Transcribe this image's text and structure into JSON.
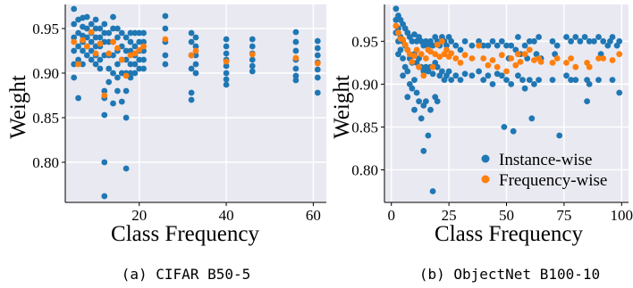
{
  "colors": {
    "panel_bg": "#e9e9f1",
    "grid": "#ffffff",
    "instance": "#1f77b4",
    "frequency": "#ff7f0e",
    "text": "#000000"
  },
  "chart_data": [
    {
      "type": "scatter",
      "caption": "(a) CIFAR B50-5",
      "xlabel": "Class Frequency",
      "ylabel": "Weight",
      "xlim": [
        3,
        63
      ],
      "ylim": [
        0.755,
        0.977
      ],
      "xticks": [
        20,
        40,
        60
      ],
      "yticks": [
        0.8,
        0.85,
        0.9,
        0.95
      ],
      "ytick_labels": [
        "0.80",
        "0.85",
        "0.90",
        "0.95"
      ],
      "xtick_labels": [
        "20",
        "40",
        "60"
      ],
      "grid": true,
      "legend": null,
      "series": [
        {
          "name": "Instance-wise",
          "x": [
            5,
            5,
            5,
            5,
            5,
            5,
            6,
            6,
            6,
            6,
            6,
            7,
            7,
            7,
            7,
            7,
            7,
            8,
            8,
            8,
            8,
            8,
            9,
            9,
            9,
            9,
            9,
            10,
            10,
            10,
            10,
            10,
            10,
            11,
            11,
            11,
            11,
            11,
            12,
            12,
            12,
            12,
            12,
            12,
            12,
            12,
            12,
            13,
            13,
            13,
            13,
            13,
            14,
            14,
            14,
            14,
            14,
            14,
            15,
            15,
            15,
            15,
            15,
            15,
            16,
            16,
            16,
            16,
            16,
            17,
            17,
            17,
            17,
            17,
            17,
            17,
            18,
            18,
            18,
            18,
            18,
            18,
            19,
            19,
            19,
            19,
            19,
            20,
            20,
            20,
            20,
            20,
            21,
            21,
            21,
            21,
            21,
            26,
            26,
            26,
            26,
            26,
            32,
            32,
            32,
            32,
            32,
            32,
            33,
            33,
            33,
            33,
            33,
            40,
            40,
            40,
            40,
            40,
            40,
            40,
            40,
            46,
            46,
            46,
            46,
            46,
            46,
            56,
            56,
            56,
            56,
            56,
            56,
            56,
            61,
            61,
            61,
            61,
            61,
            61,
            61
          ],
          "y": [
            0.972,
            0.955,
            0.94,
            0.925,
            0.91,
            0.895,
            0.96,
            0.945,
            0.93,
            0.915,
            0.872,
            0.962,
            0.952,
            0.942,
            0.935,
            0.925,
            0.91,
            0.963,
            0.95,
            0.94,
            0.93,
            0.92,
            0.955,
            0.945,
            0.935,
            0.925,
            0.915,
            0.96,
            0.95,
            0.94,
            0.93,
            0.92,
            0.91,
            0.95,
            0.94,
            0.93,
            0.915,
            0.905,
            0.955,
            0.945,
            0.935,
            0.92,
            0.88,
            0.872,
            0.853,
            0.8,
            0.762,
            0.945,
            0.935,
            0.92,
            0.905,
            0.89,
            0.963,
            0.95,
            0.935,
            0.92,
            0.9,
            0.866,
            0.95,
            0.94,
            0.925,
            0.91,
            0.895,
            0.88,
            0.945,
            0.93,
            0.915,
            0.9,
            0.868,
            0.94,
            0.925,
            0.915,
            0.9,
            0.88,
            0.85,
            0.793,
            0.945,
            0.935,
            0.925,
            0.91,
            0.9,
            0.895,
            0.945,
            0.93,
            0.92,
            0.91,
            0.9,
            0.945,
            0.935,
            0.925,
            0.915,
            0.905,
            0.945,
            0.935,
            0.925,
            0.915,
            0.905,
            0.964,
            0.95,
            0.935,
            0.92,
            0.91,
            0.945,
            0.935,
            0.92,
            0.905,
            0.878,
            0.87,
            0.94,
            0.93,
            0.92,
            0.91,
            0.9,
            0.938,
            0.93,
            0.922,
            0.915,
            0.908,
            0.9,
            0.893,
            0.887,
            0.938,
            0.93,
            0.922,
            0.915,
            0.908,
            0.902,
            0.946,
            0.935,
            0.925,
            0.915,
            0.905,
            0.897,
            0.892,
            0.936,
            0.928,
            0.92,
            0.912,
            0.904,
            0.895,
            0.878
          ]
        },
        {
          "name": "Frequency-wise",
          "x": [
            5,
            6,
            7,
            8,
            9,
            10,
            11,
            12,
            13,
            14,
            15,
            16,
            17,
            18,
            19,
            20,
            21,
            26,
            32,
            33,
            40,
            46,
            56,
            61
          ],
          "y": [
            0.935,
            0.91,
            0.937,
            0.93,
            0.946,
            0.922,
            0.933,
            0.875,
            0.922,
            0.935,
            0.928,
            0.915,
            0.897,
            0.92,
            0.922,
            0.926,
            0.93,
            0.938,
            0.92,
            0.925,
            0.913,
            0.921,
            0.917,
            0.911
          ]
        }
      ]
    },
    {
      "type": "scatter",
      "caption": "(b) ObjectNet B100-10",
      "xlabel": "Class Frequency",
      "ylabel": "Weight",
      "xlim": [
        -3,
        103
      ],
      "ylim": [
        0.762,
        0.993
      ],
      "xticks": [
        0,
        25,
        50,
        75,
        100
      ],
      "xtick_labels": [
        "0",
        "25",
        "50",
        "75",
        "100"
      ],
      "yticks": [
        0.8,
        0.85,
        0.9,
        0.95
      ],
      "ytick_labels": [
        "0.80",
        "0.85",
        "0.90",
        "0.95"
      ],
      "grid": true,
      "legend": "bottom-right",
      "series": [
        {
          "name": "Instance-wise",
          "x": [
            2,
            2,
            2,
            3,
            3,
            3,
            3,
            4,
            4,
            4,
            5,
            5,
            5,
            5,
            6,
            6,
            6,
            7,
            7,
            7,
            7,
            8,
            8,
            8,
            9,
            9,
            9,
            10,
            10,
            10,
            10,
            11,
            11,
            11,
            12,
            12,
            12,
            13,
            13,
            13,
            14,
            14,
            14,
            14,
            15,
            15,
            15,
            16,
            16,
            16,
            17,
            17,
            17,
            18,
            18,
            18,
            19,
            19,
            19,
            20,
            20,
            20,
            21,
            21,
            22,
            22,
            23,
            23,
            24,
            24,
            25,
            25,
            26,
            26,
            28,
            28,
            30,
            30,
            32,
            32,
            35,
            35,
            38,
            38,
            40,
            40,
            42,
            42,
            44,
            44,
            46,
            46,
            48,
            48,
            49,
            50,
            50,
            51,
            52,
            52,
            53,
            54,
            55,
            55,
            56,
            57,
            58,
            58,
            59,
            60,
            60,
            61,
            62,
            62,
            63,
            64,
            64,
            65,
            70,
            70,
            71,
            72,
            73,
            76,
            76,
            78,
            78,
            80,
            80,
            82,
            84,
            85,
            85,
            86,
            86,
            88,
            90,
            90,
            91,
            92,
            94,
            95,
            96,
            96,
            98,
            99,
            99
          ],
          "y": [
            0.988,
            0.975,
            0.96,
            0.98,
            0.965,
            0.95,
            0.935,
            0.975,
            0.955,
            0.94,
            0.97,
            0.95,
            0.93,
            0.91,
            0.965,
            0.945,
            0.92,
            0.96,
            0.94,
            0.915,
            0.885,
            0.955,
            0.93,
            0.9,
            0.95,
            0.925,
            0.895,
            0.958,
            0.935,
            0.905,
            0.87,
            0.95,
            0.925,
            0.89,
            0.955,
            0.93,
            0.88,
            0.95,
            0.92,
            0.86,
            0.945,
            0.915,
            0.875,
            0.822,
            0.95,
            0.92,
            0.88,
            0.945,
            0.915,
            0.84,
            0.95,
            0.92,
            0.87,
            0.945,
            0.912,
            0.775,
            0.955,
            0.925,
            0.885,
            0.95,
            0.92,
            0.88,
            0.945,
            0.91,
            0.955,
            0.915,
            0.95,
            0.905,
            0.945,
            0.91,
            0.955,
            0.915,
            0.95,
            0.905,
            0.945,
            0.91,
            0.94,
            0.905,
            0.95,
            0.912,
            0.945,
            0.91,
            0.95,
            0.915,
            0.945,
            0.905,
            0.945,
            0.91,
            0.95,
            0.9,
            0.945,
            0.912,
            0.95,
            0.91,
            0.85,
            0.945,
            0.905,
            0.93,
            0.945,
            0.9,
            0.845,
            0.94,
            0.955,
            0.91,
            0.935,
            0.905,
            0.945,
            0.895,
            0.93,
            0.95,
            0.905,
            0.86,
            0.95,
            0.9,
            0.935,
            0.955,
            0.905,
            0.93,
            0.95,
            0.905,
            0.935,
            0.945,
            0.84,
            0.955,
            0.91,
            0.95,
            0.905,
            0.955,
            0.905,
            0.95,
            0.955,
            0.905,
            0.88,
            0.95,
            0.9,
            0.95,
            0.955,
            0.905,
            0.935,
            0.95,
            0.945,
            0.95,
            0.955,
            0.905,
            0.945,
            0.95,
            0.89
          ]
        },
        {
          "name": "Frequency-wise",
          "x": [
            2,
            3,
            4,
            5,
            6,
            7,
            8,
            9,
            10,
            11,
            12,
            13,
            14,
            15,
            16,
            17,
            18,
            19,
            20,
            21,
            22,
            23,
            24,
            25,
            26,
            28,
            30,
            32,
            35,
            38,
            40,
            42,
            44,
            46,
            48,
            50,
            52,
            54,
            55,
            56,
            58,
            60,
            62,
            64,
            65,
            70,
            72,
            76,
            78,
            80,
            85,
            86,
            90,
            92,
            96,
            99
          ],
          "y": [
            0.968,
            0.96,
            0.953,
            0.952,
            0.946,
            0.94,
            0.935,
            0.926,
            0.933,
            0.94,
            0.92,
            0.935,
            0.91,
            0.93,
            0.94,
            0.938,
            0.92,
            0.935,
            0.946,
            0.932,
            0.95,
            0.935,
            0.94,
            0.932,
            0.936,
            0.93,
            0.925,
            0.934,
            0.93,
            0.945,
            0.93,
            0.922,
            0.928,
            0.92,
            0.934,
            0.915,
            0.93,
            0.922,
            0.935,
            0.926,
            0.935,
            0.94,
            0.928,
            0.93,
            0.926,
            0.925,
            0.93,
            0.925,
            0.93,
            0.92,
            0.925,
            0.92,
            0.93,
            0.93,
            0.928,
            0.935
          ]
        }
      ]
    }
  ]
}
